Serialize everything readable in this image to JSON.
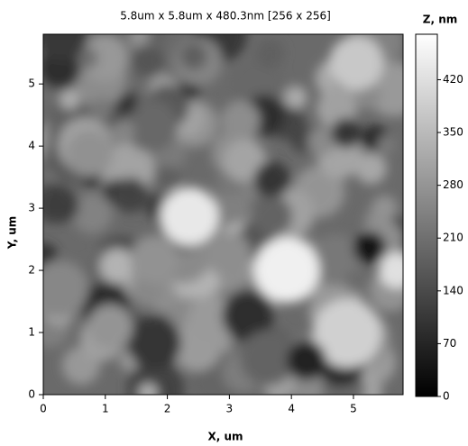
{
  "chart_data": {
    "type": "heatmap",
    "title": "5.8um x 5.8um x 480.3nm [256 x 256]",
    "x_label": "X, um",
    "y_label": "Y, um",
    "colorbar_label": "Z, nm",
    "xlim": [
      0,
      5.8
    ],
    "ylim": [
      0,
      5.8
    ],
    "xticks": [
      0,
      1,
      2,
      3,
      4,
      5
    ],
    "yticks": [
      0,
      1,
      2,
      3,
      4,
      5
    ],
    "zlim": [
      0,
      480.3
    ],
    "zticks": [
      0,
      70,
      140,
      210,
      280,
      350,
      420
    ],
    "colormap": [
      "#000000",
      "#ffffff"
    ]
  }
}
